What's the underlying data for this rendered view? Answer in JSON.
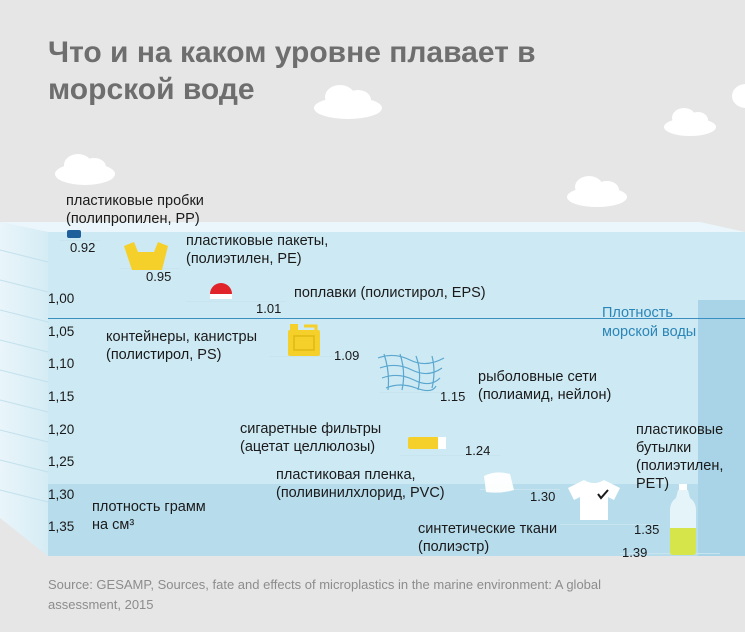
{
  "title": "Что и на каком уровне плавает в морской воде",
  "scale": {
    "ticks": [
      "1,00",
      "1,05",
      "1,10",
      "1,15",
      "1,20",
      "1,25",
      "1,30",
      "1,35"
    ],
    "unit_label": "плотность грамм на см³"
  },
  "sea_density_label": "Плотность морской воды",
  "items": [
    {
      "label": "пластиковые пробки (полипропилен, PP)",
      "value": "0.92",
      "icon": "bottle-cap-icon"
    },
    {
      "label": "пластиковые пакеты, (полиэтилен, PE)",
      "value": "0.95",
      "icon": "plastic-bag-icon"
    },
    {
      "label": "поплавки (полистирол, EPS)",
      "value": "1.01",
      "icon": "float-icon"
    },
    {
      "label": "контейнеры, канистры (полистирол, PS)",
      "value": "1.09",
      "icon": "canister-icon"
    },
    {
      "label": "рыболовные сети (полиамид, нейлон)",
      "value": "1.15",
      "icon": "fishing-net-icon"
    },
    {
      "label": "сигаретные фильтры (ацетат целлюлозы)",
      "value": "1.24",
      "icon": "cigarette-filter-icon"
    },
    {
      "label": "пластиковая пленка, (поливинилхлорид, PVC)",
      "value": "1.30",
      "icon": "plastic-film-icon"
    },
    {
      "label": "синтетические ткани (полиэстр)",
      "value": "1.35",
      "icon": "tshirt-icon"
    },
    {
      "label": "пластиковые бутылки (полиэтилен, PET)",
      "value": "1.39",
      "icon": "plastic-bottle-icon"
    }
  ],
  "source": "Source: GESAMP, Sources, fate and effects of microplastics in the marine environment: A global assessment, 2015",
  "colors": {
    "background": "#e6e6e6",
    "water": "#cde9f3",
    "water_deep": "#b7dcec",
    "accent": "#2b86b8",
    "icon_yellow": "#f5d02a",
    "float_red": "#e0242a"
  }
}
